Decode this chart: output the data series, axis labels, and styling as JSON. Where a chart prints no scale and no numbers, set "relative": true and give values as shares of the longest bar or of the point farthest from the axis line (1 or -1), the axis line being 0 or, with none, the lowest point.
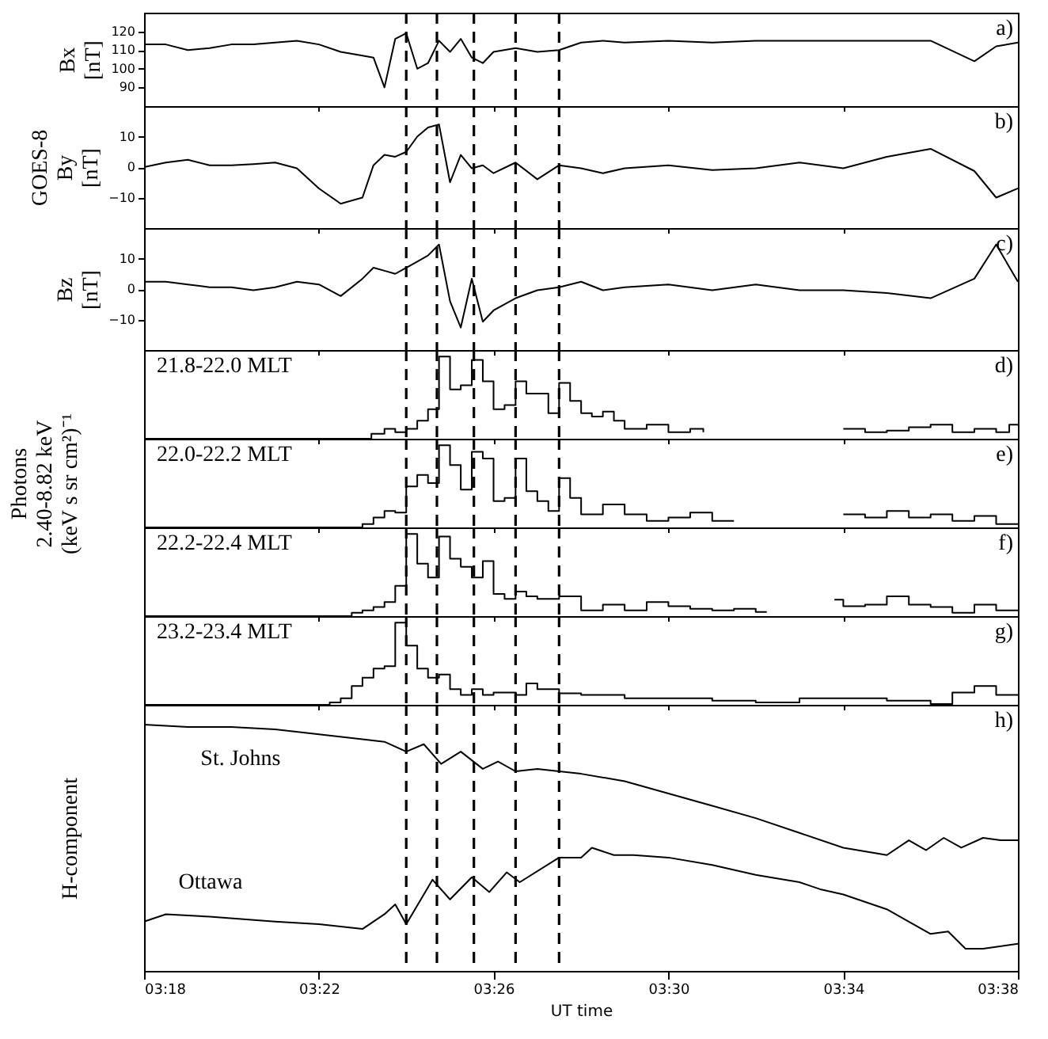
{
  "chart_data": [
    {
      "type": "line",
      "ylabel": "Bx\n[nT]",
      "annotations": [
        "a)"
      ],
      "tick_labels": "y",
      "xlim": [
        3.3,
        3.6333
      ],
      "xticks": [
        {
          "value": 3.3,
          "label": null
        },
        {
          "value": 3.3667,
          "label": null
        },
        {
          "value": 3.4333,
          "label": null
        },
        {
          "value": 3.5,
          "label": null
        },
        {
          "value": 3.5667,
          "label": null
        },
        {
          "value": 3.6333,
          "label": null
        }
      ],
      "ylim": [
        80,
        130
      ],
      "yticks": [
        90,
        100,
        110,
        120
      ],
      "ref_lines": [
        {
          "axis": "x",
          "value": 3.4,
          "line_style": "dashed",
          "color": "#000000"
        },
        {
          "axis": "x",
          "value": 3.4117,
          "line_style": "dashed",
          "color": "#000000"
        },
        {
          "axis": "x",
          "value": 3.4258,
          "line_style": "dashed",
          "color": "#000000"
        },
        {
          "axis": "x",
          "value": 3.4417,
          "line_style": "dashed",
          "color": "#000000"
        },
        {
          "axis": "x",
          "value": 3.4583,
          "line_style": "dashed",
          "color": "#000000"
        }
      ],
      "series": [
        {
          "color": "#000000",
          "x": [
            3.3,
            3.3083,
            3.3167,
            3.325,
            3.3333,
            3.3417,
            3.35,
            3.3583,
            3.3667,
            3.375,
            3.3833,
            3.3875,
            3.3917,
            3.3958,
            3.4,
            3.4042,
            3.4083,
            3.4125,
            3.4167,
            3.4208,
            3.425,
            3.4292,
            3.4333,
            3.4417,
            3.45,
            3.4583,
            3.4667,
            3.475,
            3.4833,
            3.5,
            3.5167,
            3.5333,
            3.55,
            3.5667,
            3.5833,
            3.6,
            3.6167,
            3.625,
            3.6333
          ],
          "values": [
            113,
            113,
            110,
            111,
            113,
            113,
            114,
            115,
            113,
            109,
            107,
            106,
            90,
            116,
            119,
            100,
            103,
            115,
            109,
            116,
            106,
            103,
            109,
            111,
            109,
            110,
            114,
            115,
            114,
            115,
            114,
            115,
            115,
            115,
            115,
            115,
            104,
            112,
            114
          ]
        }
      ]
    },
    {
      "type": "line",
      "ylabel": "GOES-8\nBy\n[nT]",
      "annotations": [
        "b)"
      ],
      "tick_labels": "y",
      "xlim": [
        3.3,
        3.6333
      ],
      "xticks": [
        {
          "value": 3.3,
          "label": null
        },
        {
          "value": 3.3667,
          "label": null
        },
        {
          "value": 3.4333,
          "label": null
        },
        {
          "value": 3.5,
          "label": null
        },
        {
          "value": 3.5667,
          "label": null
        },
        {
          "value": 3.6333,
          "label": null
        }
      ],
      "ylim": [
        -20,
        20
      ],
      "yticks": [
        -10,
        0,
        10
      ],
      "ref_lines": [
        {
          "axis": "x",
          "value": 3.4,
          "line_style": "dashed",
          "color": "#000000"
        },
        {
          "axis": "x",
          "value": 3.4117,
          "line_style": "dashed",
          "color": "#000000"
        },
        {
          "axis": "x",
          "value": 3.4258,
          "line_style": "dashed",
          "color": "#000000"
        },
        {
          "axis": "x",
          "value": 3.4417,
          "line_style": "dashed",
          "color": "#000000"
        },
        {
          "axis": "x",
          "value": 3.4583,
          "line_style": "dashed",
          "color": "#000000"
        }
      ],
      "series": [
        {
          "color": "#000000",
          "x": [
            3.3,
            3.3083,
            3.3167,
            3.325,
            3.3333,
            3.3417,
            3.35,
            3.3583,
            3.3667,
            3.375,
            3.3833,
            3.3875,
            3.3917,
            3.3958,
            3.4,
            3.4042,
            3.4083,
            3.4125,
            3.4167,
            3.4208,
            3.425,
            3.4292,
            3.4333,
            3.4417,
            3.45,
            3.4583,
            3.4667,
            3.475,
            3.4833,
            3.5,
            3.5167,
            3.5333,
            3.55,
            3.5667,
            3.5833,
            3.6,
            3.6167,
            3.625,
            3.6333
          ],
          "values": [
            0,
            1.5,
            2.4,
            0.6,
            0.6,
            1,
            1.5,
            -0.4,
            -7,
            -12,
            -10,
            0.6,
            4,
            3.4,
            5,
            10,
            13,
            14,
            -5,
            4,
            -0.4,
            0.6,
            -2,
            1.5,
            -4,
            0.6,
            -0.4,
            -2,
            -0.4,
            0.6,
            -1,
            -0.4,
            1.5,
            -0.4,
            3.4,
            6,
            -1.3,
            -10,
            -7
          ]
        }
      ]
    },
    {
      "type": "line",
      "ylabel": "Bz\n[nT]",
      "annotations": [
        "c)"
      ],
      "tick_labels": "y",
      "xlim": [
        3.3,
        3.6333
      ],
      "xticks": [
        {
          "value": 3.3,
          "label": null
        },
        {
          "value": 3.3667,
          "label": null
        },
        {
          "value": 3.4333,
          "label": null
        },
        {
          "value": 3.5,
          "label": null
        },
        {
          "value": 3.5667,
          "label": null
        },
        {
          "value": 3.6333,
          "label": null
        }
      ],
      "ylim": [
        -20,
        20
      ],
      "yticks": [
        -10,
        0,
        10
      ],
      "ref_lines": [
        {
          "axis": "x",
          "value": 3.4,
          "line_style": "dashed",
          "color": "#000000"
        },
        {
          "axis": "x",
          "value": 3.4117,
          "line_style": "dashed",
          "color": "#000000"
        },
        {
          "axis": "x",
          "value": 3.4258,
          "line_style": "dashed",
          "color": "#000000"
        },
        {
          "axis": "x",
          "value": 3.4417,
          "line_style": "dashed",
          "color": "#000000"
        },
        {
          "axis": "x",
          "value": 3.4583,
          "line_style": "dashed",
          "color": "#000000"
        }
      ],
      "series": [
        {
          "color": "#000000",
          "x": [
            3.3,
            3.3083,
            3.3167,
            3.325,
            3.3333,
            3.3417,
            3.35,
            3.3583,
            3.3667,
            3.375,
            3.3833,
            3.3875,
            3.3917,
            3.3958,
            3.4,
            3.4042,
            3.4083,
            3.4125,
            3.4167,
            3.4208,
            3.425,
            3.4292,
            3.4333,
            3.4417,
            3.45,
            3.4583,
            3.4667,
            3.475,
            3.4833,
            3.5,
            3.5167,
            3.5333,
            3.55,
            3.5667,
            3.5833,
            3.6,
            3.6167,
            3.625,
            3.6333
          ],
          "values": [
            2.4,
            2.4,
            1.5,
            0.6,
            0.6,
            -0.4,
            0.6,
            2.4,
            1.5,
            -2.3,
            3.4,
            7,
            6,
            5,
            7,
            9,
            11,
            14.6,
            -4,
            -12.6,
            3.4,
            -10.7,
            -7,
            -3,
            -0.4,
            0.6,
            2.4,
            -0.4,
            0.6,
            1.5,
            -0.4,
            1.5,
            -0.4,
            -0.4,
            -1.3,
            -3,
            3.4,
            14.6,
            2.4
          ]
        }
      ]
    },
    {
      "type": "step",
      "relative": true,
      "annotations": [
        "21.8-22.0 MLT",
        "d)"
      ],
      "tick_labels": false,
      "xlim": [
        3.3,
        3.6333
      ],
      "xticks": [
        {
          "value": 3.3,
          "label": null
        },
        {
          "value": 3.3667,
          "label": null
        },
        {
          "value": 3.4333,
          "label": null
        },
        {
          "value": 3.5,
          "label": null
        },
        {
          "value": 3.5667,
          "label": null
        },
        {
          "value": 3.6333,
          "label": null
        }
      ],
      "ref_lines": [
        {
          "axis": "x",
          "value": 3.4,
          "line_style": "dashed",
          "color": "#000000"
        },
        {
          "axis": "x",
          "value": 3.4117,
          "line_style": "dashed",
          "color": "#000000"
        },
        {
          "axis": "x",
          "value": 3.4258,
          "line_style": "dashed",
          "color": "#000000"
        },
        {
          "axis": "x",
          "value": 3.4417,
          "line_style": "dashed",
          "color": "#000000"
        },
        {
          "axis": "x",
          "value": 3.4583,
          "line_style": "dashed",
          "color": "#000000"
        }
      ],
      "series": [
        {
          "color": "#000000",
          "x": [
            3.3,
            3.3867,
            3.3917,
            3.3958,
            3.4,
            3.4042,
            3.4083,
            3.4125,
            3.4167,
            3.4208,
            3.425,
            3.4292,
            3.4333,
            3.4375,
            3.4417,
            3.4458,
            3.45,
            3.4542,
            3.4583,
            3.4625,
            3.4667,
            3.4708,
            3.475,
            3.4792,
            3.4833,
            3.4917,
            3.5,
            3.5083,
            3.5133,
            3.5167,
            3.5667,
            3.575,
            3.5833,
            3.5917,
            3.6,
            3.6083,
            3.6167,
            3.625,
            3.63,
            3.6333
          ],
          "values": [
            0,
            0.06,
            0.12,
            0.08,
            0.12,
            0.22,
            0.36,
            1,
            0.6,
            0.65,
            0.96,
            0.7,
            0.36,
            0.41,
            0.7,
            0.55,
            0.55,
            0.31,
            0.68,
            0.46,
            0.31,
            0.27,
            0.33,
            0.22,
            0.12,
            0.17,
            0.08,
            0.12,
            0.08,
            null,
            0.12,
            0.08,
            0.1,
            0.14,
            0.17,
            0.08,
            0.12,
            0.08,
            0.17,
            0.17
          ]
        }
      ]
    },
    {
      "type": "step",
      "relative": true,
      "ylabel": "Photons\n2.40-8.82 keV\n(keV s sr cm²)⁻¹",
      "annotations": [
        "22.0-22.2 MLT",
        "e)"
      ],
      "tick_labels": false,
      "xlim": [
        3.3,
        3.6333
      ],
      "xticks": [
        {
          "value": 3.3,
          "label": null
        },
        {
          "value": 3.3667,
          "label": null
        },
        {
          "value": 3.4333,
          "label": null
        },
        {
          "value": 3.5,
          "label": null
        },
        {
          "value": 3.5667,
          "label": null
        },
        {
          "value": 3.6333,
          "label": null
        }
      ],
      "ref_lines": [
        {
          "axis": "x",
          "value": 3.4,
          "line_style": "dashed",
          "color": "#000000"
        },
        {
          "axis": "x",
          "value": 3.4117,
          "line_style": "dashed",
          "color": "#000000"
        },
        {
          "axis": "x",
          "value": 3.4258,
          "line_style": "dashed",
          "color": "#000000"
        },
        {
          "axis": "x",
          "value": 3.4417,
          "line_style": "dashed",
          "color": "#000000"
        },
        {
          "axis": "x",
          "value": 3.4583,
          "line_style": "dashed",
          "color": "#000000"
        }
      ],
      "series": [
        {
          "color": "#000000",
          "x": [
            3.3,
            3.3833,
            3.3875,
            3.3917,
            3.3958,
            3.4,
            3.4042,
            3.4083,
            3.4125,
            3.4167,
            3.4208,
            3.425,
            3.4292,
            3.4333,
            3.4375,
            3.4417,
            3.4458,
            3.45,
            3.4542,
            3.4583,
            3.4625,
            3.4667,
            3.475,
            3.4833,
            3.4917,
            3.5,
            3.5083,
            3.5167,
            3.525,
            3.5283,
            3.5667,
            3.575,
            3.5833,
            3.5917,
            3.6,
            3.6083,
            3.6167,
            3.625,
            3.6333
          ],
          "values": [
            0,
            0.04,
            0.12,
            0.2,
            0.18,
            0.5,
            0.64,
            0.54,
            1,
            0.76,
            0.46,
            0.92,
            0.84,
            0.32,
            0.36,
            0.84,
            0.44,
            0.32,
            0.2,
            0.6,
            0.36,
            0.16,
            0.28,
            0.16,
            0.08,
            0.12,
            0.18,
            0.08,
            0.08,
            null,
            0.16,
            0.12,
            0.2,
            0.12,
            0.16,
            0.08,
            0.14,
            0.04,
            0.04
          ]
        }
      ]
    },
    {
      "type": "step",
      "relative": true,
      "annotations": [
        "22.2-22.4 MLT",
        "f)"
      ],
      "tick_labels": false,
      "xlim": [
        3.3,
        3.6333
      ],
      "xticks": [
        {
          "value": 3.3,
          "label": null
        },
        {
          "value": 3.3667,
          "label": null
        },
        {
          "value": 3.4333,
          "label": null
        },
        {
          "value": 3.5,
          "label": null
        },
        {
          "value": 3.5667,
          "label": null
        },
        {
          "value": 3.6333,
          "label": null
        }
      ],
      "ref_lines": [
        {
          "axis": "x",
          "value": 3.4,
          "line_style": "dashed",
          "color": "#000000"
        },
        {
          "axis": "x",
          "value": 3.4117,
          "line_style": "dashed",
          "color": "#000000"
        },
        {
          "axis": "x",
          "value": 3.4258,
          "line_style": "dashed",
          "color": "#000000"
        },
        {
          "axis": "x",
          "value": 3.4417,
          "line_style": "dashed",
          "color": "#000000"
        },
        {
          "axis": "x",
          "value": 3.4583,
          "line_style": "dashed",
          "color": "#000000"
        }
      ],
      "series": [
        {
          "color": "#000000",
          "x": [
            3.3,
            3.3792,
            3.3833,
            3.3875,
            3.3917,
            3.3958,
            3.4,
            3.4042,
            3.4083,
            3.4125,
            3.4167,
            3.4208,
            3.425,
            3.4292,
            3.4333,
            3.4375,
            3.4417,
            3.4458,
            3.45,
            3.4583,
            3.4667,
            3.475,
            3.4833,
            3.4917,
            3.5,
            3.5083,
            3.5167,
            3.525,
            3.5333,
            3.5375,
            3.5417,
            3.5633,
            3.5667,
            3.575,
            3.5833,
            3.5917,
            3.6,
            3.6083,
            3.6167,
            3.625,
            3.6333
          ],
          "values": [
            0,
            0.04,
            0.07,
            0.11,
            0.17,
            0.37,
            1,
            0.64,
            0.47,
            0.97,
            0.7,
            0.6,
            0.47,
            0.67,
            0.27,
            0.21,
            0.3,
            0.24,
            0.21,
            0.24,
            0.07,
            0.14,
            0.07,
            0.17,
            0.12,
            0.09,
            0.07,
            0.09,
            0.05,
            0.05,
            null,
            0.2,
            0.12,
            0.14,
            0.24,
            0.14,
            0.11,
            0.04,
            0.14,
            0.07,
            0.07
          ]
        }
      ]
    },
    {
      "type": "step",
      "relative": true,
      "annotations": [
        "23.2-23.4 MLT",
        "g)"
      ],
      "tick_labels": false,
      "xlim": [
        3.3,
        3.6333
      ],
      "xticks": [
        {
          "value": 3.3,
          "label": null
        },
        {
          "value": 3.3667,
          "label": null
        },
        {
          "value": 3.4333,
          "label": null
        },
        {
          "value": 3.5,
          "label": null
        },
        {
          "value": 3.5667,
          "label": null
        },
        {
          "value": 3.6333,
          "label": null
        }
      ],
      "ref_lines": [
        {
          "axis": "x",
          "value": 3.4,
          "line_style": "dashed",
          "color": "#000000"
        },
        {
          "axis": "x",
          "value": 3.4117,
          "line_style": "dashed",
          "color": "#000000"
        },
        {
          "axis": "x",
          "value": 3.4258,
          "line_style": "dashed",
          "color": "#000000"
        },
        {
          "axis": "x",
          "value": 3.4417,
          "line_style": "dashed",
          "color": "#000000"
        },
        {
          "axis": "x",
          "value": 3.4583,
          "line_style": "dashed",
          "color": "#000000"
        }
      ],
      "series": [
        {
          "color": "#000000",
          "x": [
            3.3,
            3.3708,
            3.375,
            3.3792,
            3.3833,
            3.3875,
            3.3917,
            3.3958,
            3.4,
            3.4042,
            3.4083,
            3.4125,
            3.4167,
            3.4208,
            3.425,
            3.4292,
            3.4333,
            3.4417,
            3.4458,
            3.45,
            3.4583,
            3.4667,
            3.4833,
            3.5,
            3.5167,
            3.5333,
            3.55,
            3.5667,
            3.5833,
            3.6,
            3.6083,
            3.6167,
            3.625,
            3.6333
          ],
          "values": [
            0,
            0.03,
            0.08,
            0.23,
            0.33,
            0.44,
            0.47,
            1,
            0.72,
            0.44,
            0.33,
            0.37,
            0.19,
            0.12,
            0.19,
            0.12,
            0.15,
            0.12,
            0.26,
            0.19,
            0.14,
            0.12,
            0.08,
            0.08,
            0.05,
            0.03,
            0.08,
            0.08,
            0.05,
            0.01,
            0.15,
            0.23,
            0.12,
            0.12
          ]
        }
      ]
    },
    {
      "type": "line",
      "relative": true,
      "ylabel": "H-component",
      "xlabel": "UT time",
      "annotations": [
        "h)"
      ],
      "tick_labels": "x",
      "xlim": [
        3.3,
        3.6333
      ],
      "xticks": [
        {
          "value": 3.3,
          "label": "03:18"
        },
        {
          "value": 3.3667,
          "label": "03:22"
        },
        {
          "value": 3.4333,
          "label": "03:26"
        },
        {
          "value": 3.5,
          "label": "03:30"
        },
        {
          "value": 3.5667,
          "label": "03:34"
        },
        {
          "value": 3.6333,
          "label": "03:38"
        }
      ],
      "ref_lines": [
        {
          "axis": "x",
          "value": 3.4,
          "line_style": "dashed",
          "color": "#000000"
        },
        {
          "axis": "x",
          "value": 3.4117,
          "line_style": "dashed",
          "color": "#000000"
        },
        {
          "axis": "x",
          "value": 3.4258,
          "line_style": "dashed",
          "color": "#000000"
        },
        {
          "axis": "x",
          "value": 3.4417,
          "line_style": "dashed",
          "color": "#000000"
        },
        {
          "axis": "x",
          "value": 3.4583,
          "line_style": "dashed",
          "color": "#000000"
        }
      ],
      "series": [
        {
          "name": "St. Johns",
          "color": "#000000",
          "x": [
            3.3,
            3.3167,
            3.3333,
            3.35,
            3.3667,
            3.3833,
            3.3917,
            3.4,
            3.4067,
            3.4133,
            3.4208,
            3.4292,
            3.435,
            3.4417,
            3.45,
            3.4583,
            3.4667,
            3.4833,
            3.5,
            3.5167,
            3.5333,
            3.55,
            3.5667,
            3.5833,
            3.5917,
            3.5983,
            3.605,
            3.6117,
            3.62,
            3.6267,
            3.6333
          ],
          "values": [
            1,
            0.99,
            0.99,
            0.98,
            0.96,
            0.94,
            0.93,
            0.89,
            0.92,
            0.84,
            0.89,
            0.82,
            0.85,
            0.81,
            0.82,
            0.81,
            0.8,
            0.77,
            0.72,
            0.67,
            0.62,
            0.56,
            0.5,
            0.47,
            0.53,
            0.49,
            0.54,
            0.5,
            0.54,
            0.53,
            0.53
          ]
        },
        {
          "name": "Ottawa",
          "color": "#000000",
          "x": [
            3.3,
            3.3083,
            3.325,
            3.35,
            3.3667,
            3.3833,
            3.3917,
            3.3958,
            3.4,
            3.41,
            3.4167,
            3.425,
            3.4317,
            3.4383,
            3.4433,
            3.4583,
            3.4667,
            3.4708,
            3.4792,
            3.4867,
            3.5,
            3.5167,
            3.5333,
            3.55,
            3.5583,
            3.5667,
            3.5833,
            3.5917,
            3.6,
            3.6067,
            3.6133,
            3.62,
            3.6333
          ],
          "values": [
            0.2,
            0.23,
            0.22,
            0.2,
            0.19,
            0.17,
            0.23,
            0.27,
            0.19,
            0.37,
            0.29,
            0.38,
            0.32,
            0.4,
            0.36,
            0.46,
            0.46,
            0.5,
            0.47,
            0.47,
            0.46,
            0.43,
            0.39,
            0.36,
            0.33,
            0.31,
            0.25,
            0.2,
            0.15,
            0.16,
            0.09,
            0.09,
            0.11
          ]
        }
      ]
    }
  ]
}
